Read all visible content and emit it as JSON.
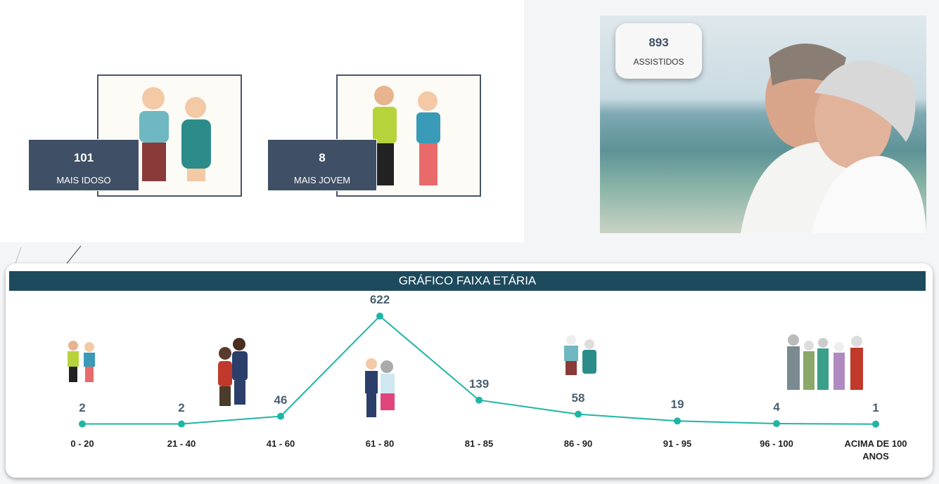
{
  "cards": [
    {
      "value": "101",
      "label": "MAIS IDOSO"
    },
    {
      "value": "8",
      "label": "MAIS JOVEM"
    }
  ],
  "badge": {
    "value": "893",
    "label": "ASSISTIDOS"
  },
  "chart_data": {
    "type": "line",
    "title": "GRÁFICO FAIXA ETÁRIA",
    "categories": [
      "0 - 20",
      "21 - 40",
      "41 - 60",
      "61 - 80",
      "81 - 85",
      "86 - 90",
      "91 - 95",
      "96 - 100",
      "ACIMA DE 100 ANOS"
    ],
    "values": [
      2,
      2,
      46,
      622,
      139,
      58,
      19,
      4,
      1
    ],
    "color": "#1fb5a5"
  }
}
